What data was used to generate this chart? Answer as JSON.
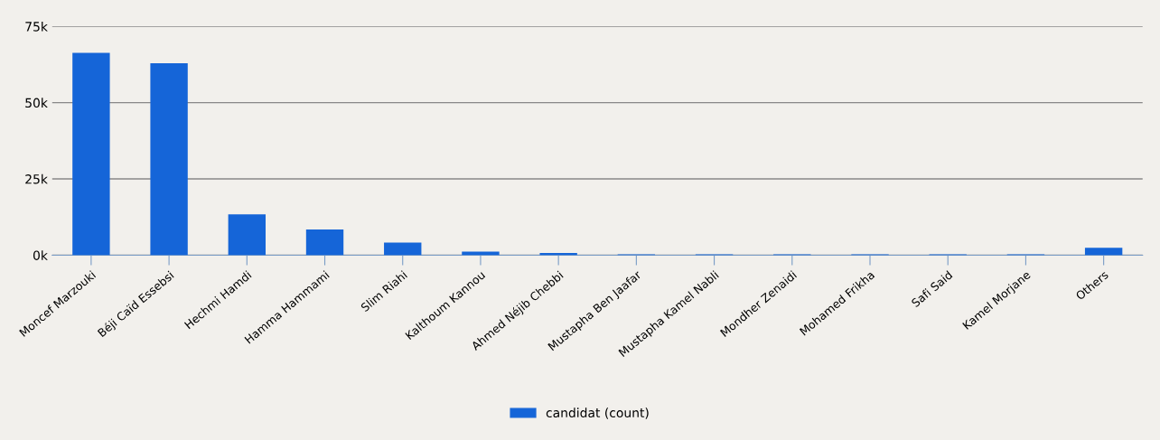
{
  "chart_data": {
    "type": "bar",
    "categories": [
      "Moncef Marzouki",
      "Béji Caïd Essebsi",
      "Hechmi Hamdi",
      "Hamma Hammami",
      "Slim Riahi",
      "Kalthoum Kannou",
      "Ahmed Néjib Chebbi",
      "Mustapha Ben Jaafar",
      "Mustapha Kamel Nabli",
      "Mondher Zenaidi",
      "Mohamed Frikha",
      "Safi Said",
      "Kamel Morjane",
      "Others"
    ],
    "series": [
      {
        "name": "candidat (count)",
        "color": "#1565d8",
        "values": [
          66300,
          62900,
          13400,
          8400,
          4100,
          1200,
          750,
          300,
          300,
          300,
          300,
          300,
          300,
          2400
        ]
      }
    ],
    "ylim": [
      0,
      75000
    ],
    "yticks": [
      {
        "value": 0,
        "label": "0k"
      },
      {
        "value": 25000,
        "label": "25k"
      },
      {
        "value": 50000,
        "label": "50k"
      },
      {
        "value": 75000,
        "label": "75k"
      }
    ],
    "grid": "y",
    "legend": "bottom"
  }
}
